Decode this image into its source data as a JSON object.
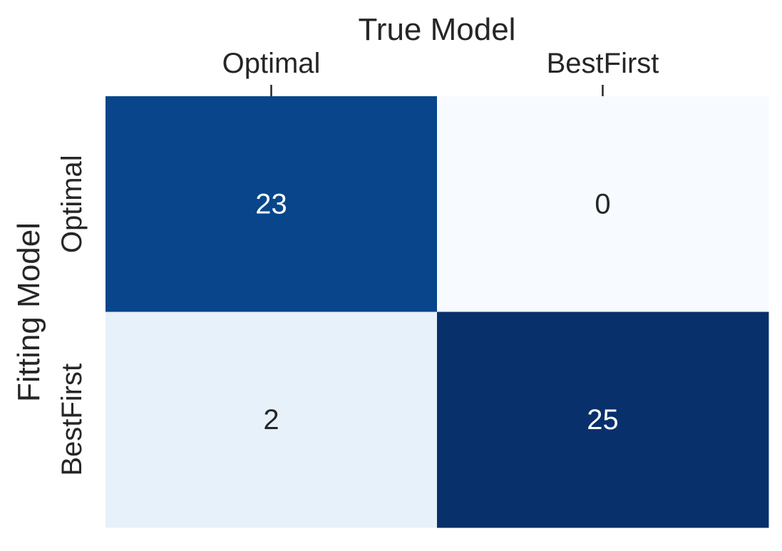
{
  "chart_data": {
    "type": "heatmap",
    "title": "",
    "xlabel": "True Model",
    "ylabel": "Fitting Model",
    "x_categories": [
      "Optimal",
      "BestFirst"
    ],
    "y_categories": [
      "Optimal",
      "BestFirst"
    ],
    "values": [
      [
        23,
        0
      ],
      [
        2,
        25
      ]
    ],
    "colormap": "Blues",
    "colorscale_range": [
      0,
      25
    ],
    "colorbar": false,
    "x_axis_position": "top",
    "annotate_cells": true
  }
}
